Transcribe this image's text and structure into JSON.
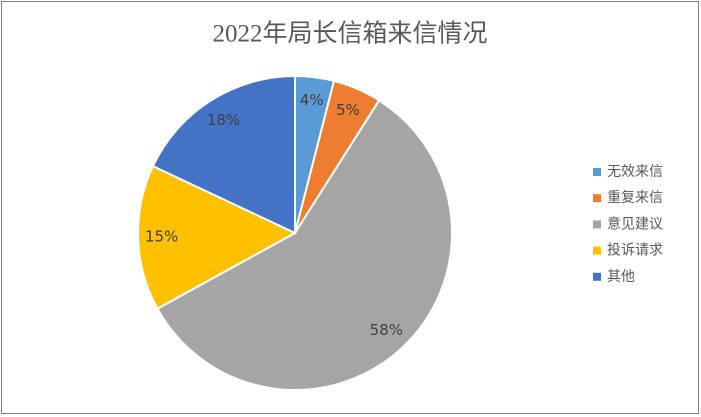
{
  "chart_data": {
    "type": "pie",
    "title": "2022年局长信箱来信情况",
    "categories": [
      "无效来信",
      "重复来信",
      "意见建议",
      "投诉请求",
      "其他"
    ],
    "values": [
      4,
      5,
      58,
      15,
      18
    ],
    "value_labels": [
      "4%",
      "5%",
      "58%",
      "15%",
      "18%"
    ],
    "colors": [
      "#5b9bd5",
      "#ed7d31",
      "#a5a5a5",
      "#ffc000",
      "#4472c4"
    ],
    "legend": "right"
  }
}
